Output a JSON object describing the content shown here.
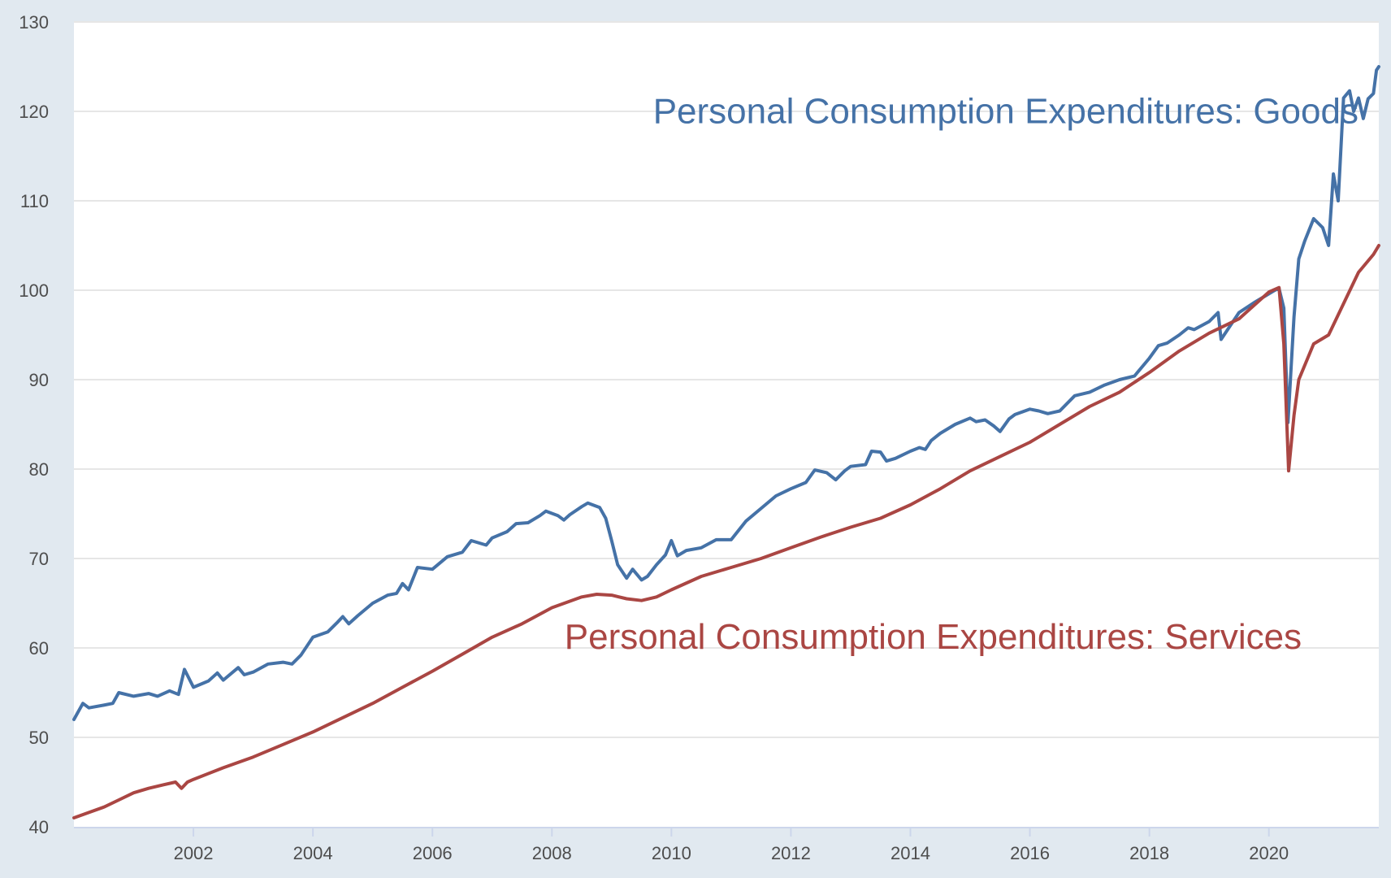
{
  "chart_data": {
    "type": "line",
    "title": "",
    "xlabel": "",
    "ylabel": "",
    "xlim": [
      2000.0,
      2021.84
    ],
    "ylim": [
      40,
      130
    ],
    "grid": true,
    "y_ticks": [
      40,
      50,
      60,
      70,
      80,
      90,
      100,
      110,
      120,
      130
    ],
    "y_tick_labels": [
      "40",
      "50",
      "60",
      "70",
      "80",
      "90",
      "100",
      "110",
      "120",
      "130"
    ],
    "x_ticks": [
      2002,
      2004,
      2006,
      2008,
      2010,
      2012,
      2014,
      2016,
      2018,
      2020
    ],
    "x_tick_labels": [
      "2002",
      "2004",
      "2006",
      "2008",
      "2010",
      "2012",
      "2014",
      "2016",
      "2018",
      "2020"
    ],
    "colors": {
      "goods": "#4572a7",
      "services": "#aa4643",
      "grid": "#e6e6e6",
      "background": "#e1e9f0",
      "plot_bg": "#ffffff",
      "axis": "#ccd6eb"
    },
    "series": [
      {
        "name": "Personal Consumption Expenditures: Goods",
        "color": "#4572a7",
        "points": [
          [
            2000.0,
            52
          ],
          [
            2000.15,
            53.8
          ],
          [
            2000.25,
            53.3
          ],
          [
            2000.5,
            53.6
          ],
          [
            2000.65,
            53.8
          ],
          [
            2000.75,
            55
          ],
          [
            2001.0,
            54.6
          ],
          [
            2001.25,
            54.9
          ],
          [
            2001.4,
            54.6
          ],
          [
            2001.6,
            55.2
          ],
          [
            2001.75,
            54.8
          ],
          [
            2001.85,
            57.6
          ],
          [
            2002.0,
            55.6
          ],
          [
            2002.25,
            56.3
          ],
          [
            2002.4,
            57.2
          ],
          [
            2002.5,
            56.4
          ],
          [
            2002.75,
            57.8
          ],
          [
            2002.85,
            57
          ],
          [
            2003.0,
            57.3
          ],
          [
            2003.25,
            58.2
          ],
          [
            2003.5,
            58.4
          ],
          [
            2003.65,
            58.2
          ],
          [
            2003.8,
            59.2
          ],
          [
            2004.0,
            61.2
          ],
          [
            2004.25,
            61.8
          ],
          [
            2004.4,
            62.8
          ],
          [
            2004.5,
            63.5
          ],
          [
            2004.6,
            62.7
          ],
          [
            2004.75,
            63.6
          ],
          [
            2005.0,
            65
          ],
          [
            2005.25,
            65.9
          ],
          [
            2005.4,
            66.1
          ],
          [
            2005.5,
            67.2
          ],
          [
            2005.6,
            66.5
          ],
          [
            2005.75,
            69
          ],
          [
            2006.0,
            68.8
          ],
          [
            2006.25,
            70.2
          ],
          [
            2006.5,
            70.7
          ],
          [
            2006.65,
            72
          ],
          [
            2006.9,
            71.5
          ],
          [
            2007.0,
            72.3
          ],
          [
            2007.25,
            73
          ],
          [
            2007.4,
            73.9
          ],
          [
            2007.6,
            74
          ],
          [
            2007.8,
            74.8
          ],
          [
            2007.9,
            75.3
          ],
          [
            2008.1,
            74.8
          ],
          [
            2008.2,
            74.3
          ],
          [
            2008.3,
            74.9
          ],
          [
            2008.5,
            75.8
          ],
          [
            2008.6,
            76.2
          ],
          [
            2008.8,
            75.7
          ],
          [
            2008.9,
            74.5
          ],
          [
            2009.0,
            72
          ],
          [
            2009.1,
            69.3
          ],
          [
            2009.25,
            67.8
          ],
          [
            2009.35,
            68.8
          ],
          [
            2009.5,
            67.6
          ],
          [
            2009.6,
            68
          ],
          [
            2009.75,
            69.3
          ],
          [
            2009.9,
            70.4
          ],
          [
            2010.0,
            72
          ],
          [
            2010.1,
            70.3
          ],
          [
            2010.25,
            70.9
          ],
          [
            2010.5,
            71.2
          ],
          [
            2010.75,
            72.1
          ],
          [
            2011.0,
            72.1
          ],
          [
            2011.25,
            74.2
          ],
          [
            2011.5,
            75.6
          ],
          [
            2011.75,
            77
          ],
          [
            2012.0,
            77.8
          ],
          [
            2012.25,
            78.5
          ],
          [
            2012.4,
            79.9
          ],
          [
            2012.6,
            79.6
          ],
          [
            2012.75,
            78.8
          ],
          [
            2012.9,
            79.8
          ],
          [
            2013.0,
            80.3
          ],
          [
            2013.25,
            80.5
          ],
          [
            2013.35,
            82
          ],
          [
            2013.5,
            81.9
          ],
          [
            2013.6,
            80.9
          ],
          [
            2013.75,
            81.2
          ],
          [
            2014.0,
            82
          ],
          [
            2014.15,
            82.4
          ],
          [
            2014.25,
            82.2
          ],
          [
            2014.35,
            83.2
          ],
          [
            2014.5,
            84
          ],
          [
            2014.75,
            85
          ],
          [
            2015.0,
            85.7
          ],
          [
            2015.1,
            85.3
          ],
          [
            2015.25,
            85.5
          ],
          [
            2015.4,
            84.8
          ],
          [
            2015.5,
            84.2
          ],
          [
            2015.65,
            85.6
          ],
          [
            2015.75,
            86.1
          ],
          [
            2016.0,
            86.7
          ],
          [
            2016.15,
            86.5
          ],
          [
            2016.3,
            86.2
          ],
          [
            2016.5,
            86.5
          ],
          [
            2016.75,
            88.2
          ],
          [
            2017.0,
            88.6
          ],
          [
            2017.25,
            89.4
          ],
          [
            2017.5,
            90
          ],
          [
            2017.75,
            90.4
          ],
          [
            2018.0,
            92.4
          ],
          [
            2018.15,
            93.8
          ],
          [
            2018.3,
            94.1
          ],
          [
            2018.5,
            95
          ],
          [
            2018.65,
            95.8
          ],
          [
            2018.75,
            95.6
          ],
          [
            2019.0,
            96.5
          ],
          [
            2019.15,
            97.5
          ],
          [
            2019.2,
            94.5
          ],
          [
            2019.35,
            96
          ],
          [
            2019.5,
            97.5
          ],
          [
            2019.75,
            98.6
          ],
          [
            2020.0,
            99.6
          ],
          [
            2020.1,
            100
          ],
          [
            2020.17,
            100.2
          ],
          [
            2020.25,
            98
          ],
          [
            2020.32,
            85.2
          ],
          [
            2020.42,
            97
          ],
          [
            2020.5,
            103.5
          ],
          [
            2020.6,
            105.5
          ],
          [
            2020.75,
            108
          ],
          [
            2020.9,
            107
          ],
          [
            2021.0,
            105
          ],
          [
            2021.08,
            113
          ],
          [
            2021.16,
            110
          ],
          [
            2021.25,
            121.5
          ],
          [
            2021.35,
            122.3
          ],
          [
            2021.42,
            120
          ],
          [
            2021.5,
            121.5
          ],
          [
            2021.58,
            119.2
          ],
          [
            2021.66,
            121.4
          ],
          [
            2021.75,
            122
          ],
          [
            2021.8,
            124.6
          ],
          [
            2021.84,
            125
          ]
        ]
      },
      {
        "name": "Personal Consumption Expenditures: Services",
        "color": "#aa4643",
        "points": [
          [
            2000.0,
            41
          ],
          [
            2000.25,
            41.6
          ],
          [
            2000.5,
            42.2
          ],
          [
            2000.75,
            43
          ],
          [
            2001.0,
            43.8
          ],
          [
            2001.25,
            44.3
          ],
          [
            2001.5,
            44.7
          ],
          [
            2001.7,
            45
          ],
          [
            2001.8,
            44.3
          ],
          [
            2001.9,
            45
          ],
          [
            2002.0,
            45.3
          ],
          [
            2002.5,
            46.6
          ],
          [
            2003.0,
            47.8
          ],
          [
            2003.5,
            49.2
          ],
          [
            2004.0,
            50.6
          ],
          [
            2004.5,
            52.2
          ],
          [
            2005.0,
            53.8
          ],
          [
            2005.5,
            55.6
          ],
          [
            2006.0,
            57.4
          ],
          [
            2006.5,
            59.3
          ],
          [
            2007.0,
            61.2
          ],
          [
            2007.5,
            62.7
          ],
          [
            2008.0,
            64.5
          ],
          [
            2008.5,
            65.7
          ],
          [
            2008.75,
            66
          ],
          [
            2009.0,
            65.9
          ],
          [
            2009.25,
            65.5
          ],
          [
            2009.5,
            65.3
          ],
          [
            2009.75,
            65.7
          ],
          [
            2010.0,
            66.5
          ],
          [
            2010.5,
            68
          ],
          [
            2011.0,
            69
          ],
          [
            2011.5,
            70
          ],
          [
            2012.0,
            71.2
          ],
          [
            2012.5,
            72.4
          ],
          [
            2013.0,
            73.5
          ],
          [
            2013.5,
            74.5
          ],
          [
            2014.0,
            76
          ],
          [
            2014.5,
            77.8
          ],
          [
            2015.0,
            79.8
          ],
          [
            2015.5,
            81.4
          ],
          [
            2016.0,
            83
          ],
          [
            2016.5,
            85
          ],
          [
            2017.0,
            87
          ],
          [
            2017.5,
            88.6
          ],
          [
            2018.0,
            90.8
          ],
          [
            2018.5,
            93.2
          ],
          [
            2019.0,
            95.2
          ],
          [
            2019.5,
            96.8
          ],
          [
            2020.0,
            99.8
          ],
          [
            2020.17,
            100.3
          ],
          [
            2020.25,
            94
          ],
          [
            2020.33,
            79.8
          ],
          [
            2020.42,
            86
          ],
          [
            2020.5,
            90
          ],
          [
            2020.75,
            94
          ],
          [
            2021.0,
            95
          ],
          [
            2021.25,
            98.5
          ],
          [
            2021.5,
            102
          ],
          [
            2021.75,
            104
          ],
          [
            2021.84,
            105
          ]
        ]
      }
    ],
    "annotations": [
      {
        "text": "Personal Consumption Expenditures: Goods",
        "series": 0
      },
      {
        "text": "Personal Consumption Expenditures: Services",
        "series": 1
      }
    ]
  }
}
